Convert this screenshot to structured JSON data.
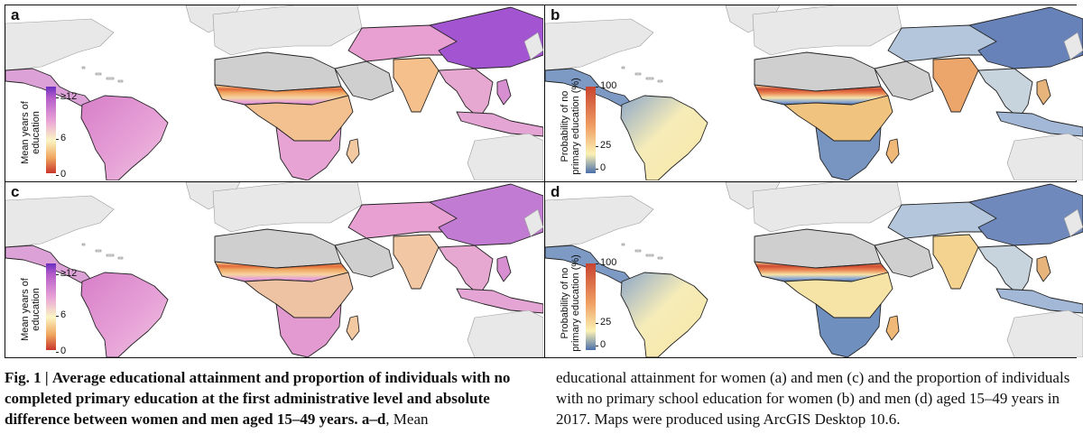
{
  "panels": [
    {
      "id": "a",
      "label": "a",
      "kind": "years"
    },
    {
      "id": "b",
      "label": "b",
      "kind": "prob"
    },
    {
      "id": "c",
      "label": "c",
      "kind": "years"
    },
    {
      "id": "d",
      "label": "d",
      "kind": "prob"
    }
  ],
  "legend_years": {
    "title_line1": "Mean years of",
    "title_line2": "education",
    "ticks": [
      "≥12",
      "6",
      "0"
    ]
  },
  "legend_prob": {
    "title_line1": "Probability of no",
    "title_line2": "primary education (%)",
    "ticks": [
      "100",
      "25",
      "0"
    ]
  },
  "colors": {
    "years_high": "#6a2fc0",
    "years_mid": "#fbf5c4",
    "years_low": "#c8362b",
    "prob_high": "#c8432f",
    "prob_mid": "#fbf1b4",
    "prob_low": "#4a6fab",
    "nodata": "#cfcfcf",
    "land": "#e8e8e8"
  },
  "caption": {
    "fig_label": "Fig. 1 |",
    "bold_text": "Average educational attainment and proportion of individuals with no completed primary education at the first administrative level and absolute difference between women and men aged 15–49 years.",
    "bold_range": "a–d",
    "text_after_range": ", Mean",
    "right_text": "educational attainment for women (a) and men (c) and the proportion of individuals with no primary school education for women (b) and men (d) aged 15–49 years in 2017. Maps were produced using ArcGIS Desktop 10.6."
  }
}
